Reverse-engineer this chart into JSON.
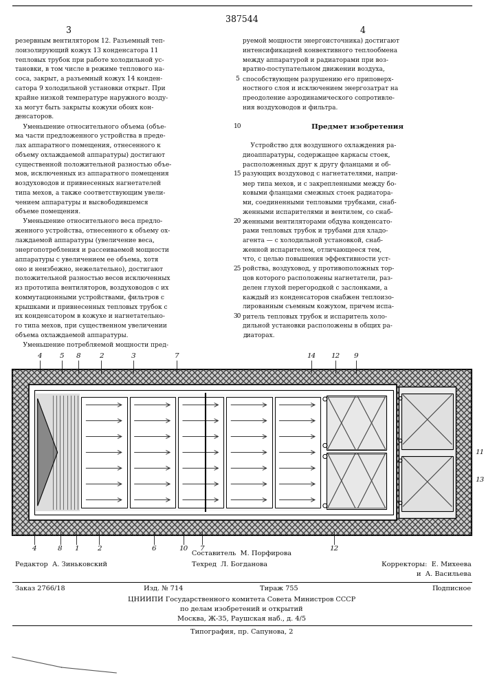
{
  "page_number_center": "387544",
  "col_left_num": "3",
  "col_right_num": "4",
  "bg_color": "#ffffff",
  "text_color": "#111111",
  "line_numbers": [
    5,
    10,
    15,
    20,
    25,
    30
  ],
  "left_column_lines": [
    "резервным вентилятором 12. Разъемный теп-",
    "лоизолирующий кожух 13 конденсатора 11",
    "тепловых трубок при работе холодильной ус-",
    "тановки, в том числе в режиме теплового на-",
    "соса, закрыт, а разъемный кожух 14 конден-",
    "сатора 9 холодильной установки открыт. При",
    "крайне низкой температуре наружного возду-",
    "ха могут быть закрыты кожухи обоих кон-",
    "денсаторов.",
    "    Уменьшение относительного объема (объе-",
    "ма части предложенного устройства в преде-",
    "лах аппаратного помещения, отнесенного к",
    "объему охлаждаемой аппаратуры) достигают",
    "существенной положительной разностью объе-",
    "мов, исключенных из аппаратного помещения",
    "воздуховодов и привнесенных нагнетателей",
    "типа мехов, а также соответствующим увели-",
    "чением аппаратуры и высвободившемся",
    "объеме помещения.",
    "    Уменьшение относительного веса предло-",
    "женного устройства, отнесенного к объему ох-",
    "лаждаемой аппаратуры (увеличение веса,",
    "энергопотребления и рассеиваемой мощности",
    "аппаратуры с увеличением ее объема, хотя",
    "оно и неизбежно, нежелательно), достигают",
    "положительной разностью весов исключенных",
    "из прототипа вентиляторов, воздуховодов с их",
    "коммутационными устройствами, фильтров с",
    "крышками и привнесенных тепловых трубок с",
    "их конденсатором в кожухе и нагнетательно-",
    "го типа мехов, при существенном увеличении",
    "объема охлаждаемой аппаратуры.",
    "    Уменьшение потребляемой мощности пред-"
  ],
  "right_column_lines": [
    "руемой мощности энергоисточника) достигают",
    "интенсификацией конвективного теплообмена",
    "между аппаратурой и радиаторами при воз-",
    "вратно-поступательном движении воздуха,",
    "способствующем разрушению его приповерх-",
    "ностного слоя и исключением энергозатрат на",
    "преодоление аэродинамического сопротивле-",
    "ния воздуховодов и фильтра.",
    "",
    "Предмет изобретения",
    "",
    "    Устройство для воздушного охлаждения ра-",
    "диоаппаратуры, содержащее каркасы стоек,",
    "расположенных друг к другу фланцами и об-",
    "разующих воздуховод с нагнетателями, напри-",
    "мер типа мехов, и с закрепленными между бо-",
    "ковыми фланцами смежных стоек радиатора-",
    "ми, соединенными тепловыми трубками, снаб-",
    "женными испарителями и вентилем, со снаб-",
    "женными вентиляторами обдува конденсато-",
    "рами тепловых трубок и трубами для хладо-",
    "агента — с холодильной установкой, снаб-",
    "женной испарителем, отличающееся тем,",
    "что, с целью повышения эффективности уст-",
    "ройства, воздуховод, у противоположных тор-",
    "цов которого расположены нагнетатели, раз-",
    "делен глухой перегородкой с заслонками, а",
    "каждый из конденсаторов снабжен теплоизо-",
    "лированным съемным кожухом, причем испа-",
    "ритель тепловых трубок и испаритель холо-",
    "дильной установки расположены в общих ра-",
    "диаторах."
  ],
  "footer_compiler": "Составитель  М. Порфирова",
  "footer_editor": "Редактор  А. Зиньковский",
  "footer_tech": "Техред  Л. Богданова",
  "footer_correctors": "Корректоры:  Е. Михеева",
  "footer_corrector2": "и  А. Васильева",
  "footer_order": "Заказ 2766/18",
  "footer_izd": "Изд. № 714",
  "footer_tirazh": "Тираж 755",
  "footer_podpis": "Подписное",
  "footer_tsniip1": "ЦНИИПИ Государственного комитета Совета Министров СССР",
  "footer_tsniip2": "по делам изобретений и открытий",
  "footer_address": "Москва, Ж-35, Раушская наб., д. 4/5",
  "footer_tipografia": "Типография, пр. Сапунова, 2",
  "top_labels": [
    "4",
    "5",
    "8",
    "2",
    "3",
    "7",
    "14",
    "12",
    "9"
  ],
  "bottom_labels": [
    "4",
    "8",
    "1",
    "2",
    "6",
    "10",
    "7",
    "12"
  ],
  "right_labels": [
    "11",
    "13"
  ]
}
